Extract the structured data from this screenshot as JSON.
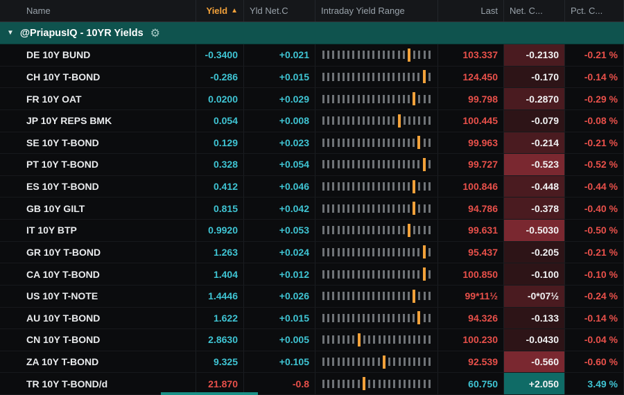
{
  "header": {
    "columns": [
      "Name",
      "Yield",
      "Yld Net.C",
      "Intraday Yield Range",
      "Last",
      "Net. C...",
      "Pct. C..."
    ],
    "sort_arrow": "▲"
  },
  "group": {
    "collapse_icon": "▼",
    "label": "@PriapusIQ - 10YR Yields",
    "gear_icon": "⚙"
  },
  "range_bar_count": 22,
  "colors": {
    "cyan": "#3fc4d3",
    "red": "#e8504a",
    "orange": "#f2a13a",
    "group-bg": "#0f534e",
    "header-text": "#9aa3ab",
    "bg-red-1": "#2d1417",
    "bg-red-2": "#4a1b20",
    "bg-red-3": "#7a2830",
    "bg-teal": "#0f6b66",
    "bar-gray": "#6f7377",
    "scroll-teal": "#1a9187"
  },
  "rows": [
    {
      "name": "DE 10Y BUND",
      "yield": "-0.3400",
      "yld_net": "+0.021",
      "range_pos": 0.79,
      "last": "103.337",
      "net_c": "-0.2130",
      "pct_c": "-0.21 %",
      "yield_class": "cyan",
      "yld_class": "cyan",
      "last_class": "red",
      "net_class": "bg-red-2",
      "pct_class": "red"
    },
    {
      "name": "CH 10Y T-BOND",
      "yield": "-0.286",
      "yld_net": "+0.015",
      "range_pos": 0.97,
      "last": "124.450",
      "net_c": "-0.170",
      "pct_c": "-0.14 %",
      "yield_class": "cyan",
      "yld_class": "cyan",
      "last_class": "red",
      "net_class": "bg-red-1",
      "pct_class": "red"
    },
    {
      "name": "FR 10Y OAT",
      "yield": "0.0200",
      "yld_net": "+0.029",
      "range_pos": 0.88,
      "last": "99.798",
      "net_c": "-0.2870",
      "pct_c": "-0.29 %",
      "yield_class": "cyan",
      "yld_class": "cyan",
      "last_class": "red",
      "net_class": "bg-red-2",
      "pct_class": "red"
    },
    {
      "name": "JP 10Y REPS BMK",
      "yield": "0.054",
      "yld_net": "+0.008",
      "range_pos": 0.7,
      "last": "100.445",
      "net_c": "-0.079",
      "pct_c": "-0.08 %",
      "yield_class": "cyan",
      "yld_class": "cyan",
      "last_class": "red",
      "net_class": "bg-red-1",
      "pct_class": "red"
    },
    {
      "name": "SE 10Y T-BOND",
      "yield": "0.129",
      "yld_net": "+0.023",
      "range_pos": 0.9,
      "last": "99.963",
      "net_c": "-0.214",
      "pct_c": "-0.21 %",
      "yield_class": "cyan",
      "yld_class": "cyan",
      "last_class": "red",
      "net_class": "bg-red-2",
      "pct_class": "red"
    },
    {
      "name": "PT 10Y T-BOND",
      "yield": "0.328",
      "yld_net": "+0.054",
      "range_pos": 0.93,
      "last": "99.727",
      "net_c": "-0.523",
      "pct_c": "-0.52 %",
      "yield_class": "cyan",
      "yld_class": "cyan",
      "last_class": "red",
      "net_class": "bg-red-3",
      "pct_class": "red"
    },
    {
      "name": "ES 10Y T-BOND",
      "yield": "0.412",
      "yld_net": "+0.046",
      "range_pos": 0.88,
      "last": "100.846",
      "net_c": "-0.448",
      "pct_c": "-0.44 %",
      "yield_class": "cyan",
      "yld_class": "cyan",
      "last_class": "red",
      "net_class": "bg-red-2",
      "pct_class": "red"
    },
    {
      "name": "GB 10Y GILT",
      "yield": "0.815",
      "yld_net": "+0.042",
      "range_pos": 0.86,
      "last": "94.786",
      "net_c": "-0.378",
      "pct_c": "-0.40 %",
      "yield_class": "cyan",
      "yld_class": "cyan",
      "last_class": "red",
      "net_class": "bg-red-2",
      "pct_class": "red"
    },
    {
      "name": "IT 10Y BTP",
      "yield": "0.9920",
      "yld_net": "+0.053",
      "range_pos": 0.83,
      "last": "99.631",
      "net_c": "-0.5030",
      "pct_c": "-0.50 %",
      "yield_class": "cyan",
      "yld_class": "cyan",
      "last_class": "red",
      "net_class": "bg-red-3",
      "pct_class": "red"
    },
    {
      "name": "GR 10Y T-BOND",
      "yield": "1.263",
      "yld_net": "+0.024",
      "range_pos": 0.93,
      "last": "95.437",
      "net_c": "-0.205",
      "pct_c": "-0.21 %",
      "yield_class": "cyan",
      "yld_class": "cyan",
      "last_class": "red",
      "net_class": "bg-red-1",
      "pct_class": "red"
    },
    {
      "name": "CA 10Y T-BOND",
      "yield": "1.404",
      "yld_net": "+0.012",
      "range_pos": 0.95,
      "last": "100.850",
      "net_c": "-0.100",
      "pct_c": "-0.10 %",
      "yield_class": "cyan",
      "yld_class": "cyan",
      "last_class": "red",
      "net_class": "bg-red-1",
      "pct_class": "red"
    },
    {
      "name": "US 10Y T-NOTE",
      "yield": "1.4446",
      "yld_net": "+0.026",
      "range_pos": 0.88,
      "last": "99*11½",
      "net_c": "-0*07½",
      "pct_c": "-0.24 %",
      "yield_class": "cyan",
      "yld_class": "cyan",
      "last_class": "red",
      "net_class": "bg-red-2",
      "pct_class": "red"
    },
    {
      "name": "AU 10Y T-BOND",
      "yield": "1.622",
      "yld_net": "+0.015",
      "range_pos": 0.9,
      "last": "94.326",
      "net_c": "-0.133",
      "pct_c": "-0.14 %",
      "yield_class": "cyan",
      "yld_class": "cyan",
      "last_class": "red",
      "net_class": "bg-red-1",
      "pct_class": "red"
    },
    {
      "name": "CN 10Y T-BOND",
      "yield": "2.8630",
      "yld_net": "+0.005",
      "range_pos": 0.32,
      "last": "100.230",
      "net_c": "-0.0430",
      "pct_c": "-0.04 %",
      "yield_class": "cyan",
      "yld_class": "cyan",
      "last_class": "red",
      "net_class": "bg-red-1",
      "pct_class": "red"
    },
    {
      "name": "ZA 10Y T-BOND",
      "yield": "9.325",
      "yld_net": "+0.105",
      "range_pos": 0.58,
      "last": "92.539",
      "net_c": "-0.560",
      "pct_c": "-0.60 %",
      "yield_class": "cyan",
      "yld_class": "cyan",
      "last_class": "red",
      "net_class": "bg-red-3",
      "pct_class": "red"
    },
    {
      "name": "TR 10Y T-BOND/d",
      "yield": "21.870",
      "yld_net": "-0.8",
      "range_pos": 0.4,
      "last": "60.750",
      "net_c": "+2.050",
      "pct_c": "3.49 %",
      "yield_class": "red",
      "yld_class": "red",
      "last_class": "cyan",
      "net_class": "bg-teal",
      "pct_class": "cyan"
    }
  ]
}
